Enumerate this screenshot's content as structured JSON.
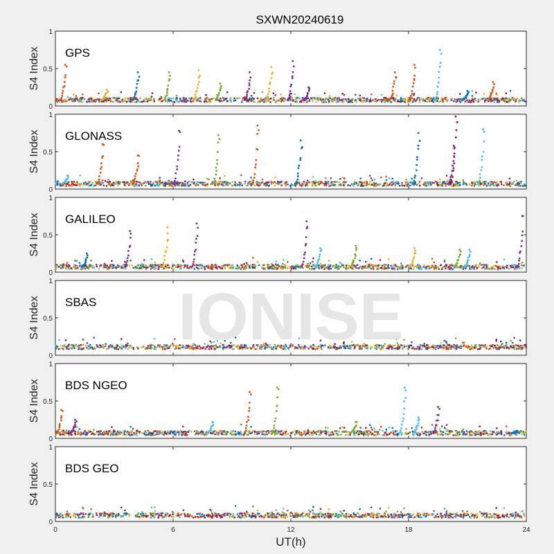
{
  "chart_data": {
    "type": "scatter",
    "title": "SXWN20240619",
    "xlabel": "UT(h)",
    "ylabel": "S4 Index",
    "xlim": [
      0,
      24
    ],
    "ylim": [
      0,
      1
    ],
    "xticks": [
      0,
      6,
      12,
      18,
      24
    ],
    "xtick_labels": [
      "0",
      "6",
      "12",
      "18",
      "24"
    ],
    "yticks": [
      0,
      0.5,
      1
    ],
    "ytick_labels": [
      "0",
      "0.5",
      "1"
    ],
    "watermark": "IONISE",
    "colors": [
      "#0072BD",
      "#D95319",
      "#EDB120",
      "#7E2F8E",
      "#77AC30",
      "#4DBEEE",
      "#A2142F"
    ],
    "panels": [
      {
        "label": "GPS",
        "baseline": 0.08,
        "peaks": [
          {
            "x": 0.5,
            "y": 0.55,
            "c": 1
          },
          {
            "x": 2.6,
            "y": 0.22,
            "c": 2
          },
          {
            "x": 4.2,
            "y": 0.45,
            "c": 0
          },
          {
            "x": 5.8,
            "y": 0.45,
            "c": 4
          },
          {
            "x": 7.3,
            "y": 0.48,
            "c": 2
          },
          {
            "x": 8.4,
            "y": 0.3,
            "c": 4
          },
          {
            "x": 9.9,
            "y": 0.45,
            "c": 3
          },
          {
            "x": 11.0,
            "y": 0.52,
            "c": 2
          },
          {
            "x": 12.1,
            "y": 0.6,
            "c": 3
          },
          {
            "x": 12.9,
            "y": 0.25,
            "c": 3
          },
          {
            "x": 17.3,
            "y": 0.45,
            "c": 1
          },
          {
            "x": 18.3,
            "y": 0.55,
            "c": 1
          },
          {
            "x": 19.6,
            "y": 0.75,
            "c": 5
          },
          {
            "x": 21.0,
            "y": 0.2,
            "c": 0
          },
          {
            "x": 22.3,
            "y": 0.32,
            "c": 1
          }
        ]
      },
      {
        "label": "GLONASS",
        "baseline": 0.07,
        "peaks": [
          {
            "x": 0.6,
            "y": 0.18,
            "c": 5
          },
          {
            "x": 2.4,
            "y": 0.6,
            "c": 1
          },
          {
            "x": 4.2,
            "y": 0.45,
            "c": 1
          },
          {
            "x": 6.3,
            "y": 0.78,
            "c": 3
          },
          {
            "x": 8.3,
            "y": 0.72,
            "c": 4
          },
          {
            "x": 10.3,
            "y": 0.85,
            "c": 1
          },
          {
            "x": 12.5,
            "y": 0.65,
            "c": 0
          },
          {
            "x": 18.5,
            "y": 0.75,
            "c": 0
          },
          {
            "x": 20.3,
            "y": 0.58,
            "c": 3
          },
          {
            "x": 20.4,
            "y": 0.97,
            "c": 6
          },
          {
            "x": 21.8,
            "y": 0.8,
            "c": 5
          }
        ]
      },
      {
        "label": "GALILEO",
        "baseline": 0.07,
        "peaks": [
          {
            "x": 1.6,
            "y": 0.25,
            "c": 0
          },
          {
            "x": 3.8,
            "y": 0.55,
            "c": 3
          },
          {
            "x": 5.7,
            "y": 0.6,
            "c": 2
          },
          {
            "x": 7.2,
            "y": 0.65,
            "c": 3
          },
          {
            "x": 12.8,
            "y": 0.68,
            "c": 3
          },
          {
            "x": 13.5,
            "y": 0.32,
            "c": 5
          },
          {
            "x": 15.3,
            "y": 0.35,
            "c": 4
          },
          {
            "x": 18.3,
            "y": 0.32,
            "c": 2
          },
          {
            "x": 20.6,
            "y": 0.3,
            "c": 4
          },
          {
            "x": 21.1,
            "y": 0.3,
            "c": 5
          },
          {
            "x": 23.8,
            "y": 0.75,
            "c": 3
          }
        ]
      },
      {
        "label": "SBAS",
        "baseline": 0.11,
        "peaks": []
      },
      {
        "label": "BDS NGEO",
        "baseline": 0.07,
        "peaks": [
          {
            "x": 0.3,
            "y": 0.38,
            "c": 1
          },
          {
            "x": 1.0,
            "y": 0.25,
            "c": 3
          },
          {
            "x": 8.0,
            "y": 0.22,
            "c": 5
          },
          {
            "x": 9.9,
            "y": 0.62,
            "c": 1
          },
          {
            "x": 11.3,
            "y": 0.68,
            "c": 4
          },
          {
            "x": 15.3,
            "y": 0.22,
            "c": 4
          },
          {
            "x": 17.8,
            "y": 0.68,
            "c": 5
          },
          {
            "x": 18.5,
            "y": 0.28,
            "c": 5
          },
          {
            "x": 19.5,
            "y": 0.42,
            "c": 3
          },
          {
            "x": 23.5,
            "y": 0.1,
            "c": 0
          }
        ]
      },
      {
        "label": "BDS GEO",
        "baseline": 0.08,
        "peaks": []
      }
    ]
  }
}
